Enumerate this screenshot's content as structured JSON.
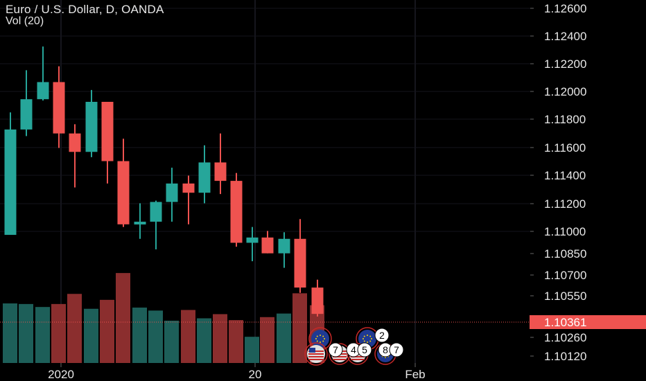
{
  "legend": {
    "title": "Euro / U.S. Dollar, D, OANDA",
    "volume": "Vol (20)"
  },
  "colors": {
    "background": "#000000",
    "up": "#26a69a",
    "down": "#ef5350",
    "volume_up": "#1d5f59",
    "volume_down": "#8b2e2e",
    "grid": "#2b2b3a",
    "axis_text": "#e8e8e8",
    "last_price_bg": "#ef5350",
    "last_price_line": "#ef5350"
  },
  "chart_data": {
    "type": "candlestick",
    "symbol": "Euro / U.S. Dollar",
    "interval": "D",
    "source": "OANDA",
    "y_axis": {
      "labels": [
        "1.12600",
        "1.12400",
        "1.12200",
        "1.12000",
        "1.11800",
        "1.11600",
        "1.11400",
        "1.11200",
        "1.11000",
        "1.10850",
        "1.10700",
        "1.10550",
        "1.10260",
        "1.10120"
      ],
      "range": [
        1.1004,
        1.1268
      ]
    },
    "x_axis": {
      "labels": [
        "2020",
        "20",
        "Feb"
      ]
    },
    "last_price": "1.10361",
    "candles": [
      {
        "o": 1.1096,
        "h": 1.1189,
        "l": 1.1096,
        "c": 1.1176,
        "v": 1.0
      },
      {
        "o": 1.1176,
        "h": 1.1221,
        "l": 1.1171,
        "c": 1.1199,
        "v": 0.99
      },
      {
        "o": 1.1199,
        "h": 1.1239,
        "l": 1.1198,
        "c": 1.1212,
        "v": 0.94
      },
      {
        "o": 1.1212,
        "h": 1.1224,
        "l": 1.1162,
        "c": 1.1173,
        "v": 0.99
      },
      {
        "o": 1.1173,
        "h": 1.118,
        "l": 1.1132,
        "c": 1.1159,
        "v": 1.16
      },
      {
        "o": 1.1159,
        "h": 1.1206,
        "l": 1.1155,
        "c": 1.1197,
        "v": 0.91
      },
      {
        "o": 1.1197,
        "h": 1.1197,
        "l": 1.1135,
        "c": 1.1152,
        "v": 1.06
      },
      {
        "o": 1.1152,
        "h": 1.1169,
        "l": 1.1102,
        "c": 1.1104,
        "v": 1.51
      },
      {
        "o": 1.1104,
        "h": 1.112,
        "l": 1.1093,
        "c": 1.1106,
        "v": 0.93
      },
      {
        "o": 1.1106,
        "h": 1.1122,
        "l": 1.1085,
        "c": 1.1121,
        "v": 0.88
      },
      {
        "o": 1.1121,
        "h": 1.1147,
        "l": 1.1106,
        "c": 1.1135,
        "v": 0.71
      },
      {
        "o": 1.1135,
        "h": 1.1141,
        "l": 1.1104,
        "c": 1.1128,
        "v": 0.89
      },
      {
        "o": 1.1128,
        "h": 1.1164,
        "l": 1.112,
        "c": 1.1151,
        "v": 0.75
      },
      {
        "o": 1.1151,
        "h": 1.1173,
        "l": 1.1127,
        "c": 1.1137,
        "v": 0.82
      },
      {
        "o": 1.1137,
        "h": 1.1143,
        "l": 1.1087,
        "c": 1.109,
        "v": 0.72
      },
      {
        "o": 1.109,
        "h": 1.1102,
        "l": 1.1076,
        "c": 1.1094,
        "v": 0.44
      },
      {
        "o": 1.1094,
        "h": 1.1099,
        "l": 1.1082,
        "c": 1.1082,
        "v": 0.77
      },
      {
        "o": 1.1082,
        "h": 1.1098,
        "l": 1.1071,
        "c": 1.1093,
        "v": 0.83
      },
      {
        "o": 1.1093,
        "h": 1.1108,
        "l": 1.1052,
        "c": 1.1056,
        "v": 1.17
      },
      {
        "o": 1.1056,
        "h": 1.1062,
        "l": 1.1034,
        "c": 1.1036,
        "v": 0.97
      }
    ],
    "event_badges": [
      {
        "label": "2"
      },
      {
        "label": "7"
      },
      {
        "label": "4"
      },
      {
        "label": "5"
      },
      {
        "label": "8"
      },
      {
        "label": "7"
      }
    ]
  }
}
